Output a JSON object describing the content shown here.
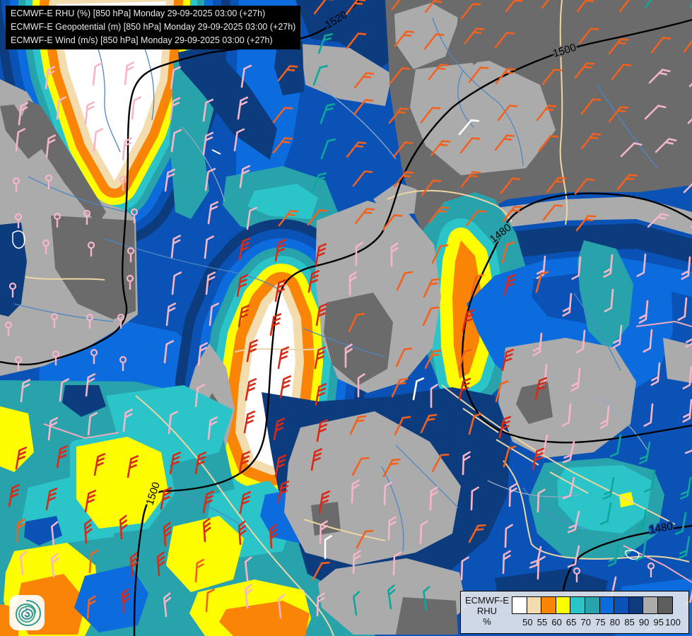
{
  "title_block": {
    "lines": [
      "ECMWF-E RHU (%) [850 hPa] Monday 29-09-2025 03:00 (+27h)",
      "ECMWF-E Geopotential (m) [850 hPa] Monday 29-09-2025 03:00 (+27h)",
      "ECMWF-E Wind (m/s) [850 hPa] Monday 29-09-2025 03:00 (+27h)"
    ]
  },
  "legend": {
    "model_label": "ECMWF-E",
    "variable_label": "RHU",
    "unit_label": "%",
    "thresholds": [
      "50",
      "55",
      "60",
      "65",
      "70",
      "75",
      "80",
      "85",
      "90",
      "95",
      "100"
    ],
    "swatch_colors": [
      "#FFFFFF",
      "#F3DCAD",
      "#FA8405",
      "#FEFE00",
      "#2BC5C9",
      "#29A3AB",
      "#0C6CDE",
      "#0A52B5",
      "#0C3B7E",
      "#ABABAB",
      "#5E5E5E"
    ]
  },
  "contour_labels": [
    {
      "value": "1520"
    },
    {
      "value": "1500"
    },
    {
      "value": "1480"
    },
    {
      "value": "1500"
    },
    {
      "value": "1480"
    }
  ],
  "palette": {
    "white": "#FFFFFF",
    "tan": "#F3DCAD",
    "orange": "#FA8405",
    "yellow": "#FEFE00",
    "cyan": "#2BC5C9",
    "teal": "#29A3AB",
    "bblue": "#0C6CDE",
    "mblue": "#0A52B5",
    "navy": "#0C3B7E",
    "lgray": "#ABABAB",
    "dgray": "#6B6B6B",
    "river": "#4E86C6",
    "border_tan": "#EBD6A4",
    "border_internal": "#93A8C4",
    "border_pink": "#F2A9B9",
    "contour": "#000000",
    "barb_pink": "#F7B6C8",
    "barb_orange": "#F2611D",
    "barb_red": "#D92A17",
    "barb_teal": "#0EA79B",
    "barb_white": "#FFFFFF"
  },
  "logo": {
    "name": "spiral-logo"
  }
}
